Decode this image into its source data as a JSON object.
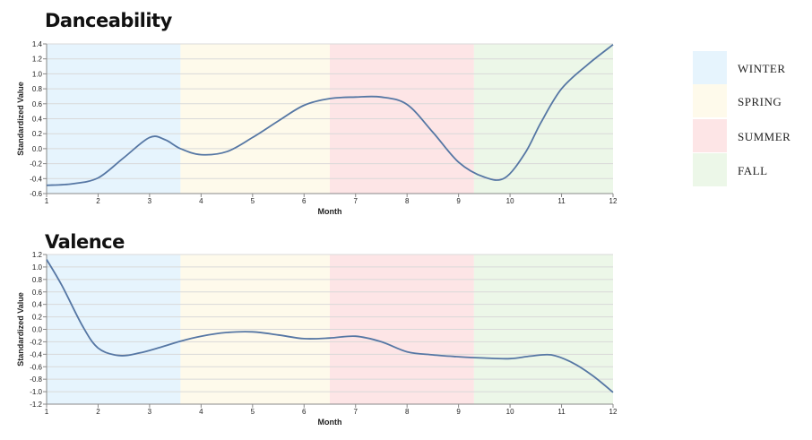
{
  "legend": {
    "items": [
      {
        "label": "WINTER",
        "color": "#e6f4fd"
      },
      {
        "label": "SPRING",
        "color": "#fefaeb"
      },
      {
        "label": "SUMMER",
        "color": "#fde5e6"
      },
      {
        "label": "FALL",
        "color": "#ecf7e8"
      }
    ]
  },
  "chart_data": [
    {
      "type": "line",
      "title": "Danceability",
      "xlabel": "Month",
      "ylabel": "Standardized Value",
      "xlim": [
        1,
        12
      ],
      "ylim": [
        -0.6,
        1.4
      ],
      "x_ticks": [
        "1",
        "2",
        "3",
        "4",
        "5",
        "6",
        "7",
        "8",
        "9",
        "10",
        "11",
        "12"
      ],
      "y_ticks": [
        "1.4",
        "1.2",
        "1.0",
        "0.8",
        "0.6",
        "0.4",
        "0.2",
        "0.0",
        "-0.2",
        "-0.4",
        "-0.6"
      ],
      "grid": true,
      "line_color": "#5677a4",
      "season_bands": [
        {
          "season": "WINTER",
          "from": 1,
          "to": 3.6
        },
        {
          "season": "SPRING",
          "from": 3.6,
          "to": 6.5
        },
        {
          "season": "SUMMER",
          "from": 6.5,
          "to": 9.3
        },
        {
          "season": "FALL",
          "from": 9.3,
          "to": 12
        }
      ],
      "x": [
        1,
        1.5,
        2,
        2.5,
        3,
        3.3,
        3.6,
        4,
        4.5,
        5,
        5.5,
        6,
        6.5,
        7,
        7.5,
        8,
        8.5,
        9,
        9.5,
        9.9,
        10.3,
        10.6,
        11,
        11.5,
        12
      ],
      "values": [
        -0.49,
        -0.47,
        -0.39,
        -0.12,
        0.15,
        0.12,
        0.0,
        -0.08,
        -0.04,
        0.15,
        0.37,
        0.58,
        0.67,
        0.69,
        0.69,
        0.59,
        0.22,
        -0.18,
        -0.38,
        -0.39,
        -0.05,
        0.35,
        0.8,
        1.12,
        1.39
      ]
    },
    {
      "type": "line",
      "title": "Valence",
      "xlabel": "Month",
      "ylabel": "Standardized Value",
      "xlim": [
        1,
        12
      ],
      "ylim": [
        -1.2,
        1.2
      ],
      "x_ticks": [
        "1",
        "2",
        "3",
        "4",
        "5",
        "6",
        "7",
        "8",
        "9",
        "10",
        "11",
        "12"
      ],
      "y_ticks": [
        "1.2",
        "1.0",
        "0.8",
        "0.6",
        "0.4",
        "0.2",
        "0.0",
        "-0.2",
        "-0.4",
        "-0.6",
        "-0.8",
        "-1.0",
        "-1.2"
      ],
      "grid": true,
      "line_color": "#5677a4",
      "season_bands": [
        {
          "season": "WINTER",
          "from": 1,
          "to": 3.6
        },
        {
          "season": "SPRING",
          "from": 3.6,
          "to": 6.5
        },
        {
          "season": "SUMMER",
          "from": 6.5,
          "to": 9.3
        },
        {
          "season": "FALL",
          "from": 9.3,
          "to": 12
        }
      ],
      "x": [
        1,
        1.3,
        1.7,
        2,
        2.4,
        2.8,
        3.2,
        3.6,
        4,
        4.5,
        5,
        5.5,
        6,
        6.5,
        7,
        7.5,
        8,
        8.5,
        9,
        9.5,
        10,
        10.4,
        10.8,
        11.2,
        11.6,
        12
      ],
      "values": [
        1.12,
        0.7,
        0.05,
        -0.3,
        -0.42,
        -0.38,
        -0.29,
        -0.19,
        -0.11,
        -0.05,
        -0.04,
        -0.09,
        -0.15,
        -0.14,
        -0.11,
        -0.2,
        -0.36,
        -0.41,
        -0.44,
        -0.46,
        -0.47,
        -0.43,
        -0.41,
        -0.53,
        -0.74,
        -1.01
      ]
    }
  ]
}
